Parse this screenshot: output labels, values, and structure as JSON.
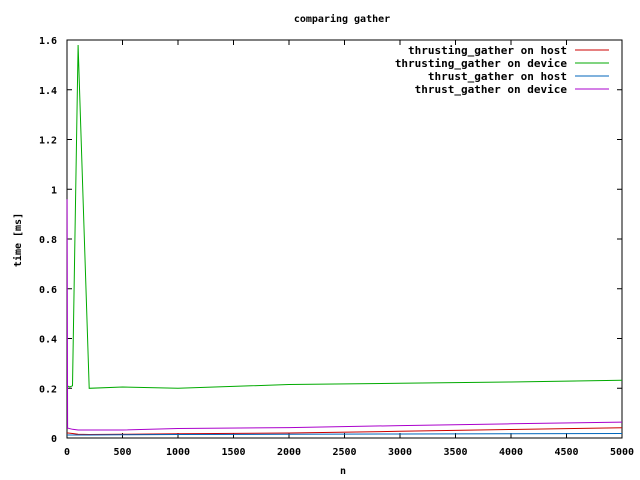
{
  "chart_data": {
    "type": "line",
    "title": "comparing gather",
    "xlabel": "n",
    "ylabel": "time [ms]",
    "xlim": [
      0,
      5000
    ],
    "ylim": [
      0,
      1.6
    ],
    "x_ticks": [
      0,
      500,
      1000,
      1500,
      2000,
      2500,
      3000,
      3500,
      4000,
      4500,
      5000
    ],
    "x_tick_labels": [
      "0",
      "500",
      "1000",
      "1500",
      "2000",
      "2500",
      "3000",
      "3500",
      "4000",
      "4500",
      "5000"
    ],
    "y_ticks": [
      0,
      0.2,
      0.4,
      0.6,
      0.8,
      1,
      1.2,
      1.4,
      1.6
    ],
    "y_tick_labels": [
      "0",
      "0.2",
      "0.4",
      "0.6",
      "0.8",
      "1",
      "1.2",
      "1.4",
      "1.6"
    ],
    "grid": false,
    "legend_position": "top-right",
    "series": [
      {
        "name": "thrusting_gather on host",
        "color": "#cc0000",
        "points": [
          [
            1,
            0.02
          ],
          [
            10,
            0.02
          ],
          [
            50,
            0.018
          ],
          [
            100,
            0.015
          ],
          [
            200,
            0.014
          ],
          [
            500,
            0.015
          ],
          [
            1000,
            0.017
          ],
          [
            2000,
            0.02
          ],
          [
            3000,
            0.027
          ],
          [
            4000,
            0.034
          ],
          [
            5000,
            0.041
          ]
        ]
      },
      {
        "name": "thrusting_gather on device",
        "color": "#00aa00",
        "points": [
          [
            1,
            0.21
          ],
          [
            25,
            0.205
          ],
          [
            50,
            0.21
          ],
          [
            100,
            1.58
          ],
          [
            200,
            0.2
          ],
          [
            500,
            0.205
          ],
          [
            1000,
            0.2
          ],
          [
            2000,
            0.215
          ],
          [
            3000,
            0.22
          ],
          [
            4000,
            0.225
          ],
          [
            5000,
            0.232
          ]
        ]
      },
      {
        "name": "thrust_gather on host",
        "color": "#0066bb",
        "points": [
          [
            1,
            0.012
          ],
          [
            50,
            0.012
          ],
          [
            100,
            0.012
          ],
          [
            200,
            0.012
          ],
          [
            500,
            0.013
          ],
          [
            1000,
            0.014
          ],
          [
            2000,
            0.015
          ],
          [
            3000,
            0.016
          ],
          [
            4000,
            0.017
          ],
          [
            5000,
            0.018
          ]
        ]
      },
      {
        "name": "thrust_gather on device",
        "color": "#aa00cc",
        "points": [
          [
            1,
            0.96
          ],
          [
            5,
            0.04
          ],
          [
            50,
            0.035
          ],
          [
            100,
            0.032
          ],
          [
            200,
            0.032
          ],
          [
            500,
            0.032
          ],
          [
            1000,
            0.038
          ],
          [
            2000,
            0.042
          ],
          [
            3000,
            0.05
          ],
          [
            4000,
            0.057
          ],
          [
            5000,
            0.064
          ]
        ]
      }
    ]
  }
}
